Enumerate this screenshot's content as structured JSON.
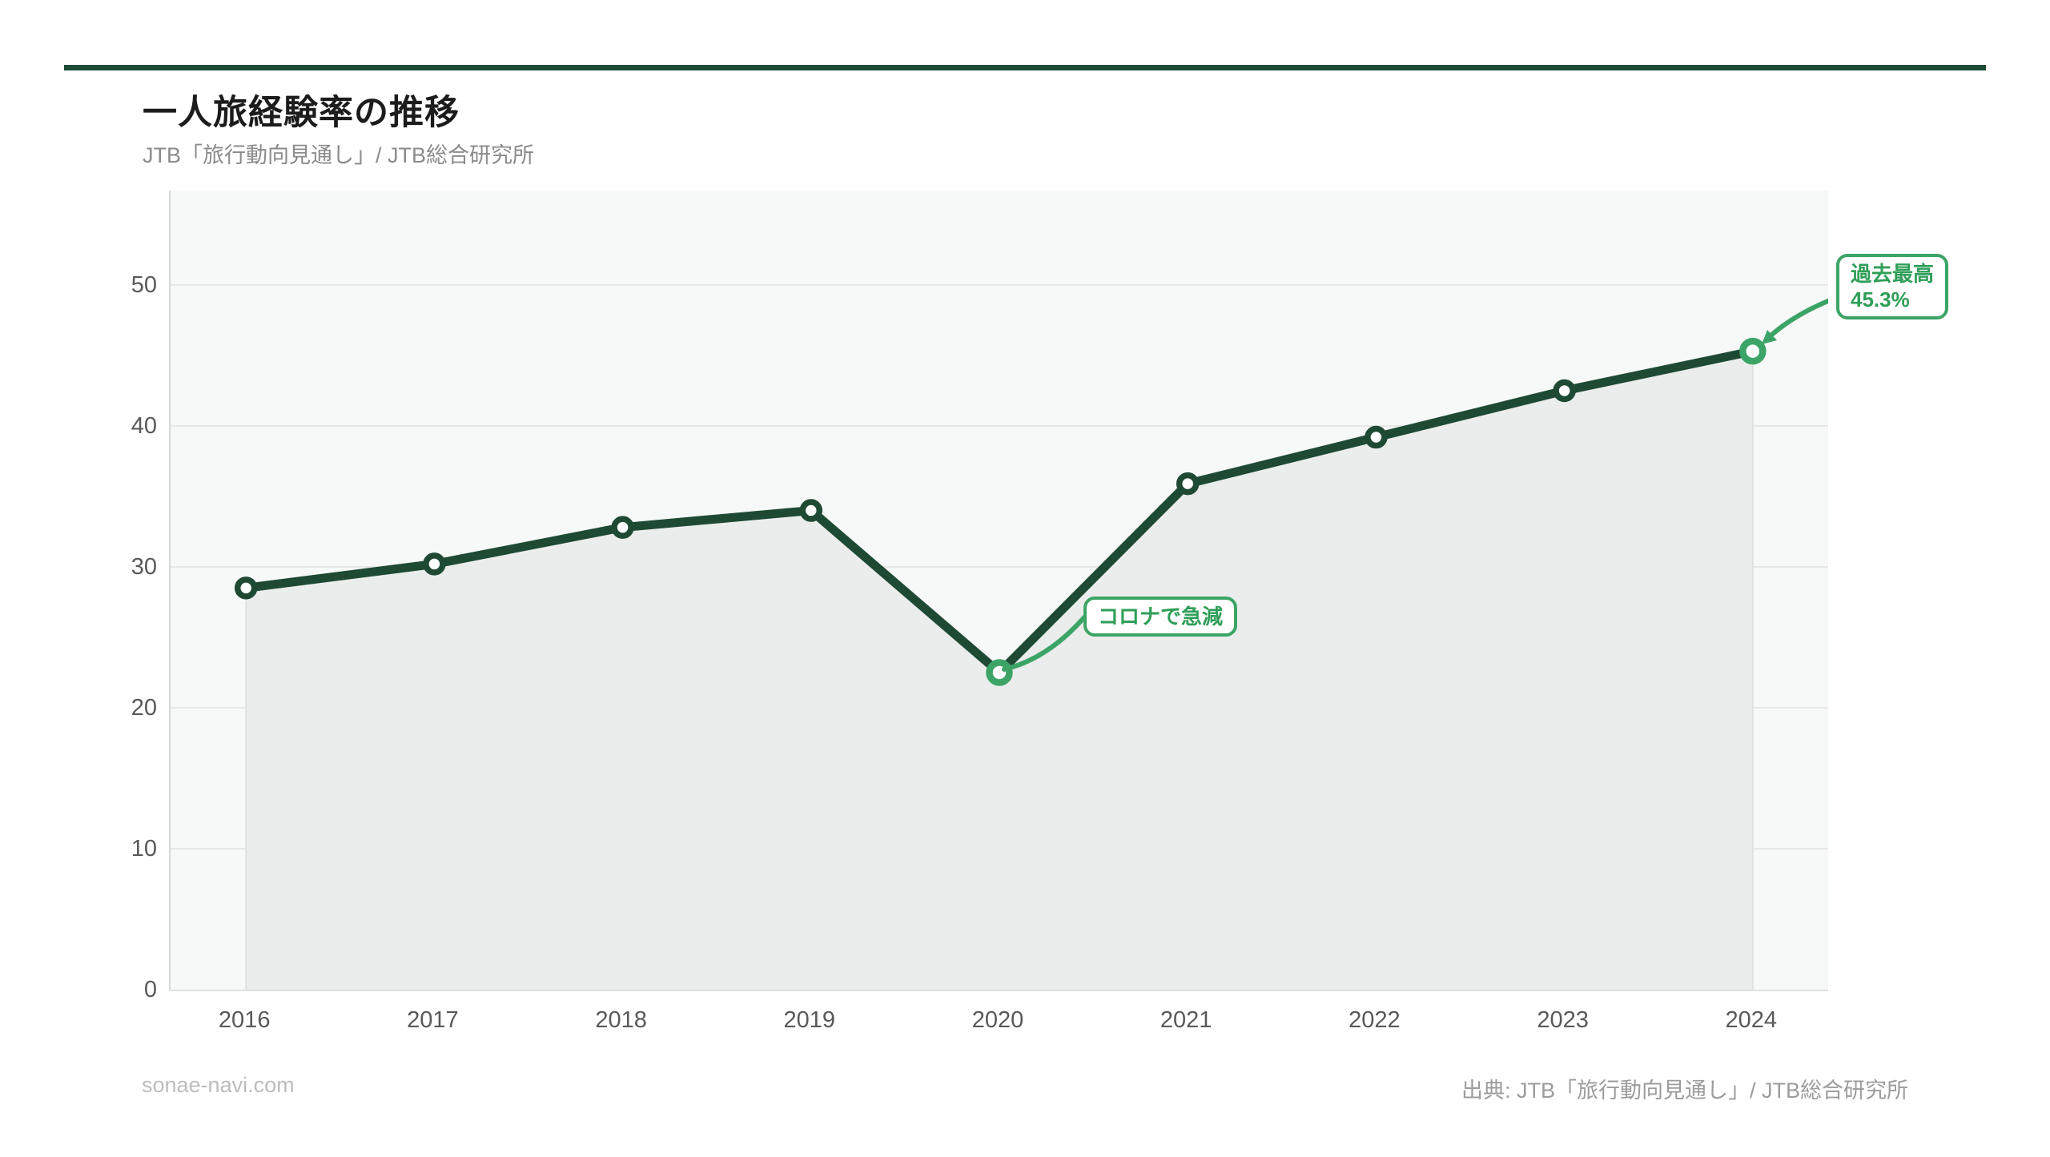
{
  "header": {
    "title": "一人旅経験率の推移",
    "subtitle": "JTB「旅行動向見通し」/ JTB総合研究所"
  },
  "footer": {
    "left": "sonae-navi.com",
    "right": "出典: JTB「旅行動向見通し」/ JTB総合研究所"
  },
  "colors": {
    "top_bar": "#1d4a33",
    "line": "#1e4a34",
    "accent": "#3ca466",
    "accent_text": "#2f9e58",
    "plot_bg": "#f7f8f8",
    "area_fill": "#ebedec",
    "area_edge": "#e0e2e1",
    "grid": "#e7e7e7",
    "tick_text": "#595959"
  },
  "chart_data": {
    "type": "line",
    "title": "一人旅経験率の推移",
    "subtitle": "JTB「旅行動向見通し」/ JTB総合研究所",
    "categories": [
      "2016",
      "2017",
      "2018",
      "2019",
      "2020",
      "2021",
      "2022",
      "2023",
      "2024"
    ],
    "series": [
      {
        "name": "一人旅経験率",
        "values": [
          28.5,
          30.2,
          32.8,
          34.0,
          22.5,
          35.9,
          39.2,
          42.5,
          45.3
        ]
      }
    ],
    "unit": "%",
    "xlabel": "",
    "ylabel": "",
    "ylim": [
      0,
      57
    ],
    "yticks": [
      0,
      10,
      20,
      30,
      40,
      50
    ],
    "grid": true,
    "area_fill": true,
    "legend": "none",
    "highlight_indices": [
      4,
      8
    ],
    "annotations": {
      "covid": {
        "index": 4,
        "label": "コロナで急減"
      },
      "record": {
        "index": 8,
        "line1": "過去最高",
        "line2": "45.3%"
      }
    }
  }
}
